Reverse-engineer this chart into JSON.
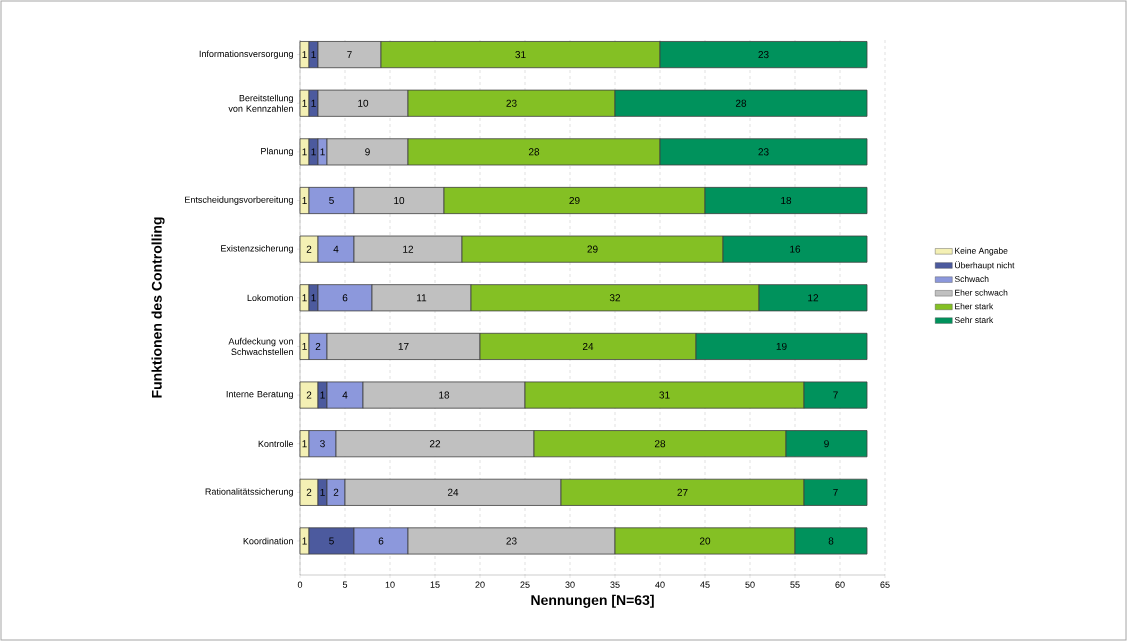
{
  "chart_data": {
    "type": "bar",
    "orientation": "horizontal",
    "stacked": true,
    "data_labels": true,
    "grid": "x",
    "legend": "right",
    "xlabel": "Nennungen [N=63]",
    "ylabel": "Funktionen des Controlling",
    "xlim": [
      0,
      65
    ],
    "xticks": [
      0,
      5,
      10,
      15,
      20,
      25,
      30,
      35,
      40,
      45,
      50,
      55,
      60,
      65
    ],
    "categories": [
      "Informationsversorgung",
      "Bereitstellung von Kennzahlen",
      "Planung",
      "Entscheidungsvorbereitung",
      "Existenzsicherung",
      "Lokomotion",
      "Aufdeckung von Schwachstellen",
      "Interne Beratung",
      "Kontrolle",
      "Rationalitätssicherung",
      "Koordination"
    ],
    "series": [
      {
        "name": "Keine Angabe",
        "color": "#f4f0b4",
        "values": [
          1,
          1,
          1,
          1,
          2,
          1,
          1,
          2,
          1,
          2,
          1
        ]
      },
      {
        "name": "Überhaupt nicht",
        "color": "#4c5a9e",
        "values": [
          1,
          1,
          1,
          null,
          null,
          1,
          null,
          1,
          null,
          1,
          5
        ]
      },
      {
        "name": "Schwach",
        "color": "#8c98dc",
        "values": [
          null,
          null,
          1,
          5,
          4,
          6,
          2,
          4,
          3,
          2,
          6
        ]
      },
      {
        "name": "Eher schwach",
        "color": "#c0c0c0",
        "values": [
          7,
          10,
          9,
          10,
          12,
          11,
          17,
          18,
          22,
          24,
          23
        ]
      },
      {
        "name": "Eher stark",
        "color": "#84c024",
        "values": [
          31,
          23,
          28,
          29,
          29,
          32,
          24,
          31,
          28,
          27,
          20
        ]
      },
      {
        "name": "Sehr stark",
        "color": "#00925c",
        "values": [
          23,
          28,
          23,
          18,
          16,
          12,
          19,
          7,
          9,
          7,
          8
        ]
      }
    ]
  }
}
